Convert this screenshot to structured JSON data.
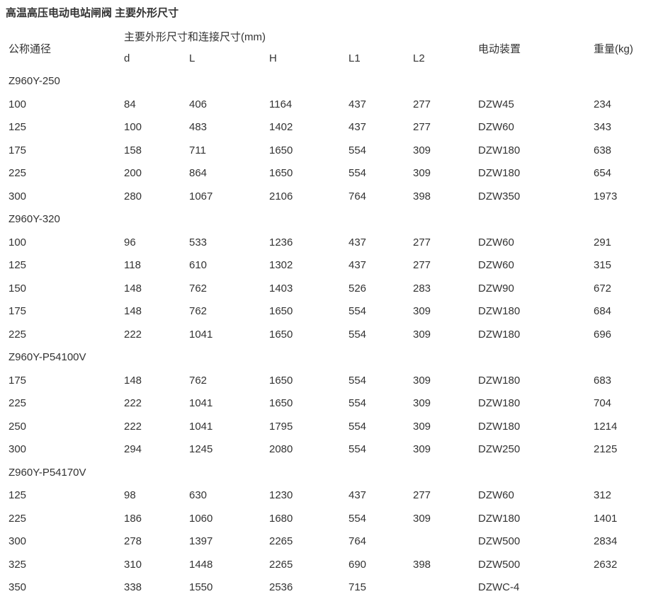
{
  "title": "高温高压电动电站闸阀  主要外形尺寸",
  "header": {
    "nominal": "公称通径",
    "dims_group": "主要外形尺寸和连接尺寸(mm)",
    "dims": [
      "d",
      "L",
      "H",
      "L1",
      "L2"
    ],
    "actuator": "电动装置",
    "weight": "重量(kg)"
  },
  "groups": [
    {
      "model": "Z960Y-250",
      "rows": [
        [
          "100",
          "84",
          "406",
          "1164",
          "437",
          "277",
          "DZW45",
          "234"
        ],
        [
          "125",
          "100",
          "483",
          "1402",
          "437",
          "277",
          "DZW60",
          "343"
        ],
        [
          "175",
          "158",
          "711",
          "1650",
          "554",
          "309",
          "DZW180",
          "638"
        ],
        [
          "225",
          "200",
          "864",
          "1650",
          "554",
          "309",
          "DZW180",
          "654"
        ],
        [
          "300",
          "280",
          "1067",
          "2106",
          "764",
          "398",
          "DZW350",
          "1973"
        ]
      ]
    },
    {
      "model": "Z960Y-320",
      "rows": [
        [
          "100",
          "96",
          "533",
          "1236",
          "437",
          "277",
          "DZW60",
          "291"
        ],
        [
          "125",
          "118",
          "610",
          "1302",
          "437",
          "277",
          "DZW60",
          "315"
        ],
        [
          "150",
          "148",
          "762",
          "1403",
          "526",
          "283",
          "DZW90",
          "672"
        ],
        [
          "175",
          "148",
          "762",
          "1650",
          "554",
          "309",
          "DZW180",
          "684"
        ],
        [
          "225",
          "222",
          "1041",
          "1650",
          "554",
          "309",
          "DZW180",
          "696"
        ]
      ]
    },
    {
      "model": "Z960Y-P54100V",
      "rows": [
        [
          "175",
          "148",
          "762",
          "1650",
          "554",
          "309",
          "DZW180",
          "683"
        ],
        [
          "225",
          "222",
          "1041",
          "1650",
          "554",
          "309",
          "DZW180",
          "704"
        ],
        [
          "250",
          "222",
          "1041",
          "1795",
          "554",
          "309",
          "DZW180",
          "1214"
        ],
        [
          "300",
          "294",
          "1245",
          "2080",
          "554",
          "309",
          "DZW250",
          "2125"
        ]
      ]
    },
    {
      "model": "Z960Y-P54170V",
      "rows": [
        [
          "125",
          "98",
          "630",
          "1230",
          "437",
          "277",
          "DZW60",
          "312"
        ],
        [
          "225",
          "186",
          "1060",
          "1680",
          "554",
          "309",
          "DZW180",
          "1401"
        ],
        [
          "300",
          "278",
          "1397",
          "2265",
          "764",
          "",
          "DZW500",
          "2834"
        ],
        [
          "325",
          "310",
          "1448",
          "2265",
          "690",
          "398",
          "DZW500",
          "2632"
        ],
        [
          "350",
          "338",
          "1550",
          "2536",
          "715",
          "",
          "DZWC-4",
          ""
        ]
      ]
    }
  ]
}
